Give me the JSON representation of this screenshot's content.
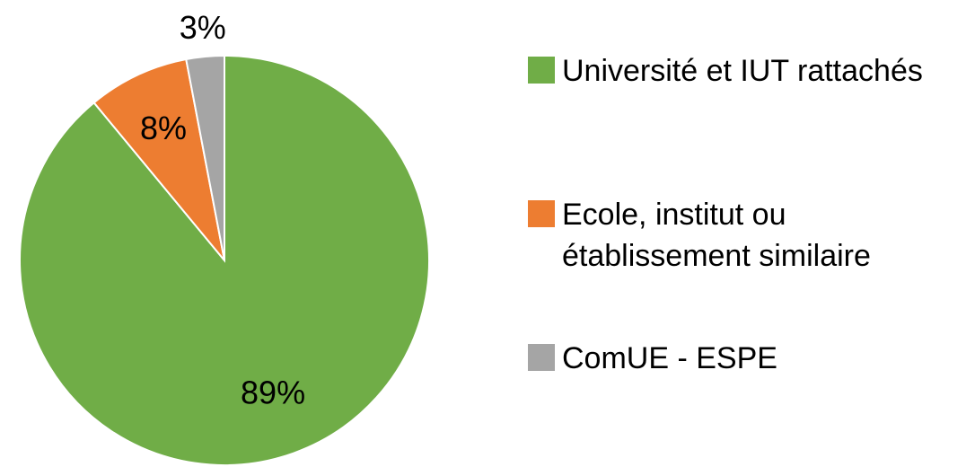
{
  "chart_data": {
    "type": "pie",
    "categories": [
      "Université et IUT rattachés",
      "Ecole, institut ou établissement similaire",
      "ComUE - ESPE"
    ],
    "values": [
      89,
      8,
      3
    ],
    "value_labels": [
      "89%",
      "8%",
      "3%"
    ],
    "colors": [
      "#70ad47",
      "#ed7d31",
      "#a5a5a5"
    ],
    "legend": "right"
  }
}
